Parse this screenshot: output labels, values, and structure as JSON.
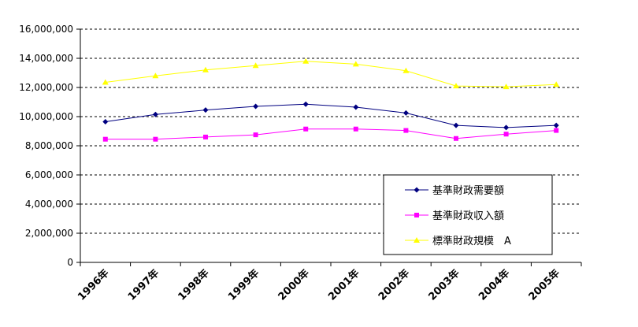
{
  "chart_data": {
    "type": "line",
    "categories": [
      "1996年",
      "1997年",
      "1998年",
      "1999年",
      "2000年",
      "2001年",
      "2002年",
      "2003年",
      "2004年",
      "2005年"
    ],
    "y_ticks": [
      "0",
      "2,000,000",
      "4,000,000",
      "6,000,000",
      "8,000,000",
      "10,000,000",
      "12,000,000",
      "14,000,000",
      "16,000,000"
    ],
    "ylim": [
      0,
      16000000
    ],
    "grid": "horizontal dashed",
    "legend_position": "bottom-right inside plot",
    "series": [
      {
        "name": "基準財政需要額",
        "color": "#000080",
        "marker": "diamond",
        "values": [
          9650000,
          10150000,
          10450000,
          10700000,
          10850000,
          10650000,
          10250000,
          9400000,
          9250000,
          9400000
        ]
      },
      {
        "name": "基準財政収入額",
        "color": "#FF00FF",
        "marker": "square",
        "values": [
          8450000,
          8450000,
          8600000,
          8750000,
          9150000,
          9150000,
          9050000,
          8500000,
          8800000,
          9050000
        ]
      },
      {
        "name": "標準財政規模　A",
        "color": "#FFFF00",
        "marker": "triangle",
        "values": [
          12350000,
          12800000,
          13200000,
          13500000,
          13800000,
          13600000,
          13150000,
          12100000,
          12050000,
          12200000
        ]
      }
    ]
  }
}
